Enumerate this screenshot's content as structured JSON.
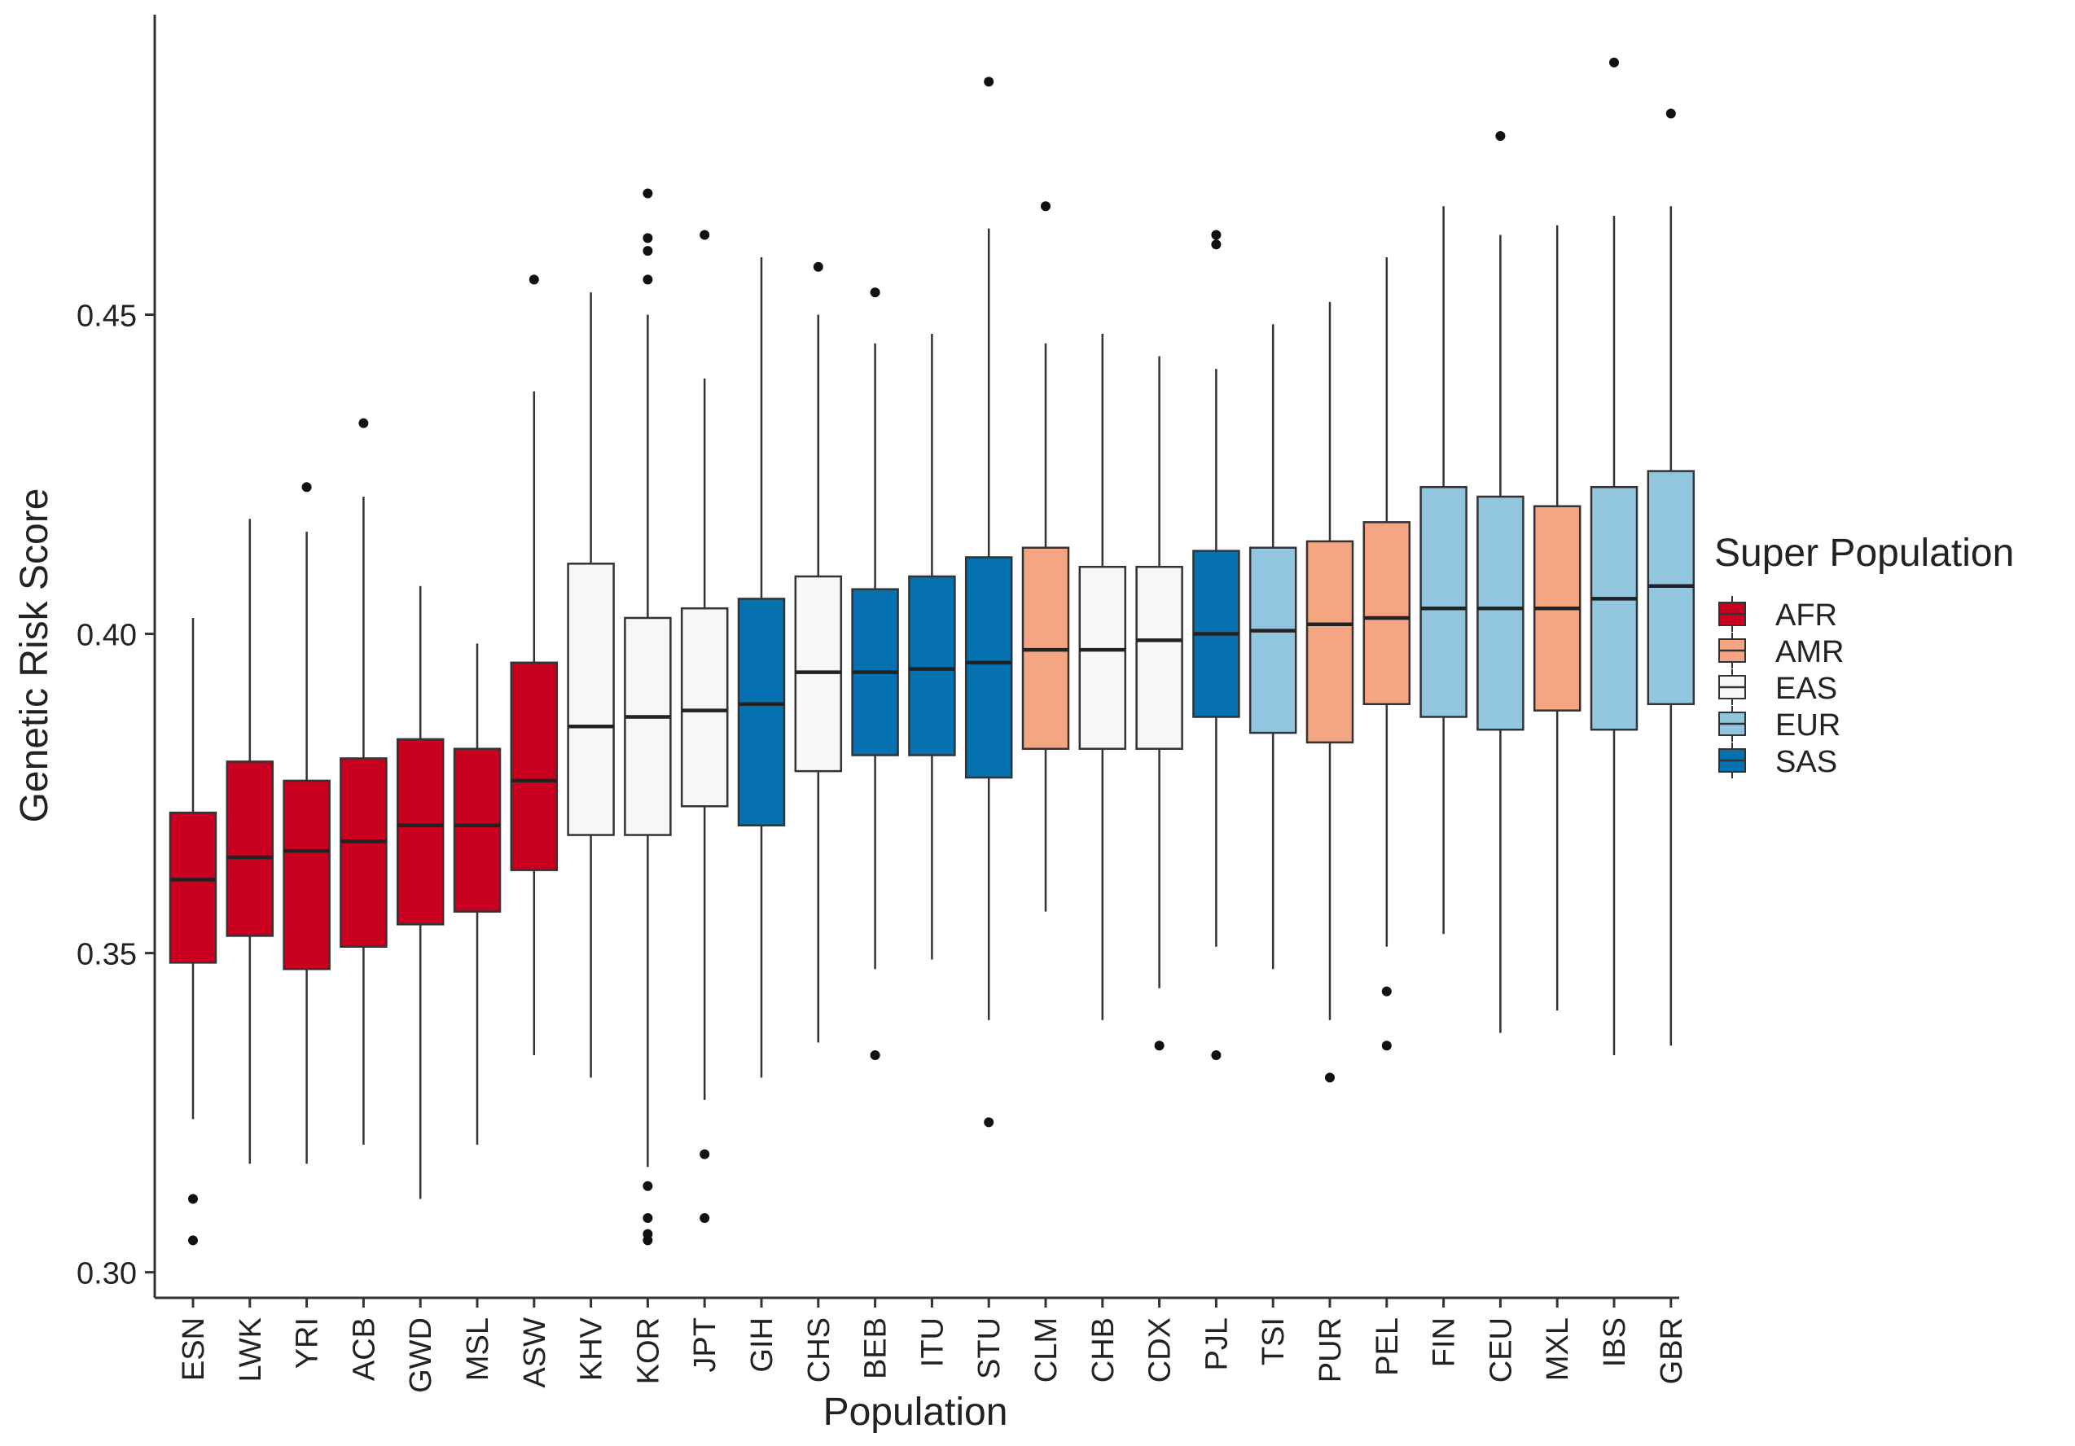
{
  "chart_data": {
    "type": "boxplot",
    "title": "",
    "xlabel": "Population",
    "ylabel": "Genetic Risk Score",
    "ylim": [
      0.296,
      0.497
    ],
    "yticks": [
      0.3,
      0.35,
      0.4,
      0.45
    ],
    "ytick_labels": [
      "0.30",
      "0.35",
      "0.40",
      "0.45"
    ],
    "legend": {
      "title": "Super Population",
      "position": "right",
      "entries": [
        {
          "label": "AFR",
          "color": "#CA0020"
        },
        {
          "label": "AMR",
          "color": "#F4A582"
        },
        {
          "label": "EAS",
          "color": "#F7F7F7"
        },
        {
          "label": "EUR",
          "color": "#92C5DE"
        },
        {
          "label": "SAS",
          "color": "#0571B0"
        }
      ]
    },
    "colors": {
      "AFR": "#CA0020",
      "AMR": "#F4A582",
      "EAS": "#F7F7F7",
      "EUR": "#92C5DE",
      "SAS": "#0571B0"
    },
    "boxes": [
      {
        "pop": "ESN",
        "super": "AFR",
        "wmin": 0.324,
        "q1": 0.3485,
        "median": 0.3615,
        "q3": 0.372,
        "wmax": 0.4025,
        "outliers": [
          0.3115,
          0.305
        ]
      },
      {
        "pop": "LWK",
        "super": "AFR",
        "wmin": 0.317,
        "q1": 0.3527,
        "median": 0.365,
        "q3": 0.38,
        "wmax": 0.418,
        "outliers": []
      },
      {
        "pop": "YRI",
        "super": "AFR",
        "wmin": 0.317,
        "q1": 0.3475,
        "median": 0.366,
        "q3": 0.377,
        "wmax": 0.416,
        "outliers": [
          0.423
        ]
      },
      {
        "pop": "ACB",
        "super": "AFR",
        "wmin": 0.32,
        "q1": 0.351,
        "median": 0.3675,
        "q3": 0.3805,
        "wmax": 0.4215,
        "outliers": [
          0.433
        ]
      },
      {
        "pop": "GWD",
        "super": "AFR",
        "wmin": 0.3115,
        "q1": 0.3545,
        "median": 0.37,
        "q3": 0.3835,
        "wmax": 0.4075,
        "outliers": []
      },
      {
        "pop": "MSL",
        "super": "AFR",
        "wmin": 0.32,
        "q1": 0.3565,
        "median": 0.37,
        "q3": 0.382,
        "wmax": 0.3985,
        "outliers": []
      },
      {
        "pop": "ASW",
        "super": "AFR",
        "wmin": 0.334,
        "q1": 0.363,
        "median": 0.377,
        "q3": 0.3955,
        "wmax": 0.438,
        "outliers": [
          0.4555
        ]
      },
      {
        "pop": "KHV",
        "super": "EAS",
        "wmin": 0.3305,
        "q1": 0.3685,
        "median": 0.3855,
        "q3": 0.411,
        "wmax": 0.4535,
        "outliers": []
      },
      {
        "pop": "KOR",
        "super": "EAS",
        "wmin": 0.3165,
        "q1": 0.3685,
        "median": 0.387,
        "q3": 0.4025,
        "wmax": 0.45,
        "outliers": [
          0.469,
          0.462,
          0.46,
          0.4555,
          0.3135,
          0.3085,
          0.306,
          0.305
        ]
      },
      {
        "pop": "JPT",
        "super": "EAS",
        "wmin": 0.327,
        "q1": 0.373,
        "median": 0.388,
        "q3": 0.404,
        "wmax": 0.44,
        "outliers": [
          0.4625,
          0.3185,
          0.3085
        ]
      },
      {
        "pop": "GIH",
        "super": "SAS",
        "wmin": 0.3305,
        "q1": 0.37,
        "median": 0.389,
        "q3": 0.4055,
        "wmax": 0.459,
        "outliers": []
      },
      {
        "pop": "CHS",
        "super": "EAS",
        "wmin": 0.336,
        "q1": 0.3785,
        "median": 0.394,
        "q3": 0.409,
        "wmax": 0.45,
        "outliers": [
          0.4575
        ]
      },
      {
        "pop": "BEB",
        "super": "SAS",
        "wmin": 0.3475,
        "q1": 0.381,
        "median": 0.394,
        "q3": 0.407,
        "wmax": 0.4455,
        "outliers": [
          0.4535,
          0.334
        ]
      },
      {
        "pop": "ITU",
        "super": "SAS",
        "wmin": 0.349,
        "q1": 0.381,
        "median": 0.3945,
        "q3": 0.409,
        "wmax": 0.447,
        "outliers": []
      },
      {
        "pop": "STU",
        "super": "SAS",
        "wmin": 0.3395,
        "q1": 0.3775,
        "median": 0.3955,
        "q3": 0.412,
        "wmax": 0.4635,
        "outliers": [
          0.4865,
          0.3235
        ]
      },
      {
        "pop": "CLM",
        "super": "AMR",
        "wmin": 0.3565,
        "q1": 0.382,
        "median": 0.3975,
        "q3": 0.4135,
        "wmax": 0.4455,
        "outliers": [
          0.467
        ]
      },
      {
        "pop": "CHB",
        "super": "EAS",
        "wmin": 0.3395,
        "q1": 0.382,
        "median": 0.3975,
        "q3": 0.4105,
        "wmax": 0.447,
        "outliers": []
      },
      {
        "pop": "CDX",
        "super": "EAS",
        "wmin": 0.3445,
        "q1": 0.382,
        "median": 0.399,
        "q3": 0.4105,
        "wmax": 0.4435,
        "outliers": [
          0.3355
        ]
      },
      {
        "pop": "PJL",
        "super": "SAS",
        "wmin": 0.351,
        "q1": 0.387,
        "median": 0.4,
        "q3": 0.413,
        "wmax": 0.4415,
        "outliers": [
          0.4625,
          0.461,
          0.334
        ]
      },
      {
        "pop": "TSI",
        "super": "EUR",
        "wmin": 0.3475,
        "q1": 0.3845,
        "median": 0.4005,
        "q3": 0.4135,
        "wmax": 0.4485,
        "outliers": []
      },
      {
        "pop": "PUR",
        "super": "AMR",
        "wmin": 0.3395,
        "q1": 0.383,
        "median": 0.4015,
        "q3": 0.4145,
        "wmax": 0.452,
        "outliers": [
          0.3305
        ]
      },
      {
        "pop": "PEL",
        "super": "AMR",
        "wmin": 0.351,
        "q1": 0.389,
        "median": 0.4025,
        "q3": 0.4175,
        "wmax": 0.459,
        "outliers": [
          0.344,
          0.3355
        ]
      },
      {
        "pop": "FIN",
        "super": "EUR",
        "wmin": 0.353,
        "q1": 0.387,
        "median": 0.404,
        "q3": 0.423,
        "wmax": 0.467,
        "outliers": []
      },
      {
        "pop": "CEU",
        "super": "EUR",
        "wmin": 0.3375,
        "q1": 0.385,
        "median": 0.404,
        "q3": 0.4215,
        "wmax": 0.4625,
        "outliers": [
          0.478
        ]
      },
      {
        "pop": "MXL",
        "super": "AMR",
        "wmin": 0.341,
        "q1": 0.388,
        "median": 0.404,
        "q3": 0.42,
        "wmax": 0.464,
        "outliers": []
      },
      {
        "pop": "IBS",
        "super": "EUR",
        "wmin": 0.334,
        "q1": 0.385,
        "median": 0.4055,
        "q3": 0.423,
        "wmax": 0.4655,
        "outliers": [
          0.4895
        ]
      },
      {
        "pop": "GBR",
        "super": "EUR",
        "wmin": 0.3355,
        "q1": 0.389,
        "median": 0.4075,
        "q3": 0.4255,
        "wmax": 0.467,
        "outliers": [
          0.4815
        ]
      }
    ]
  }
}
